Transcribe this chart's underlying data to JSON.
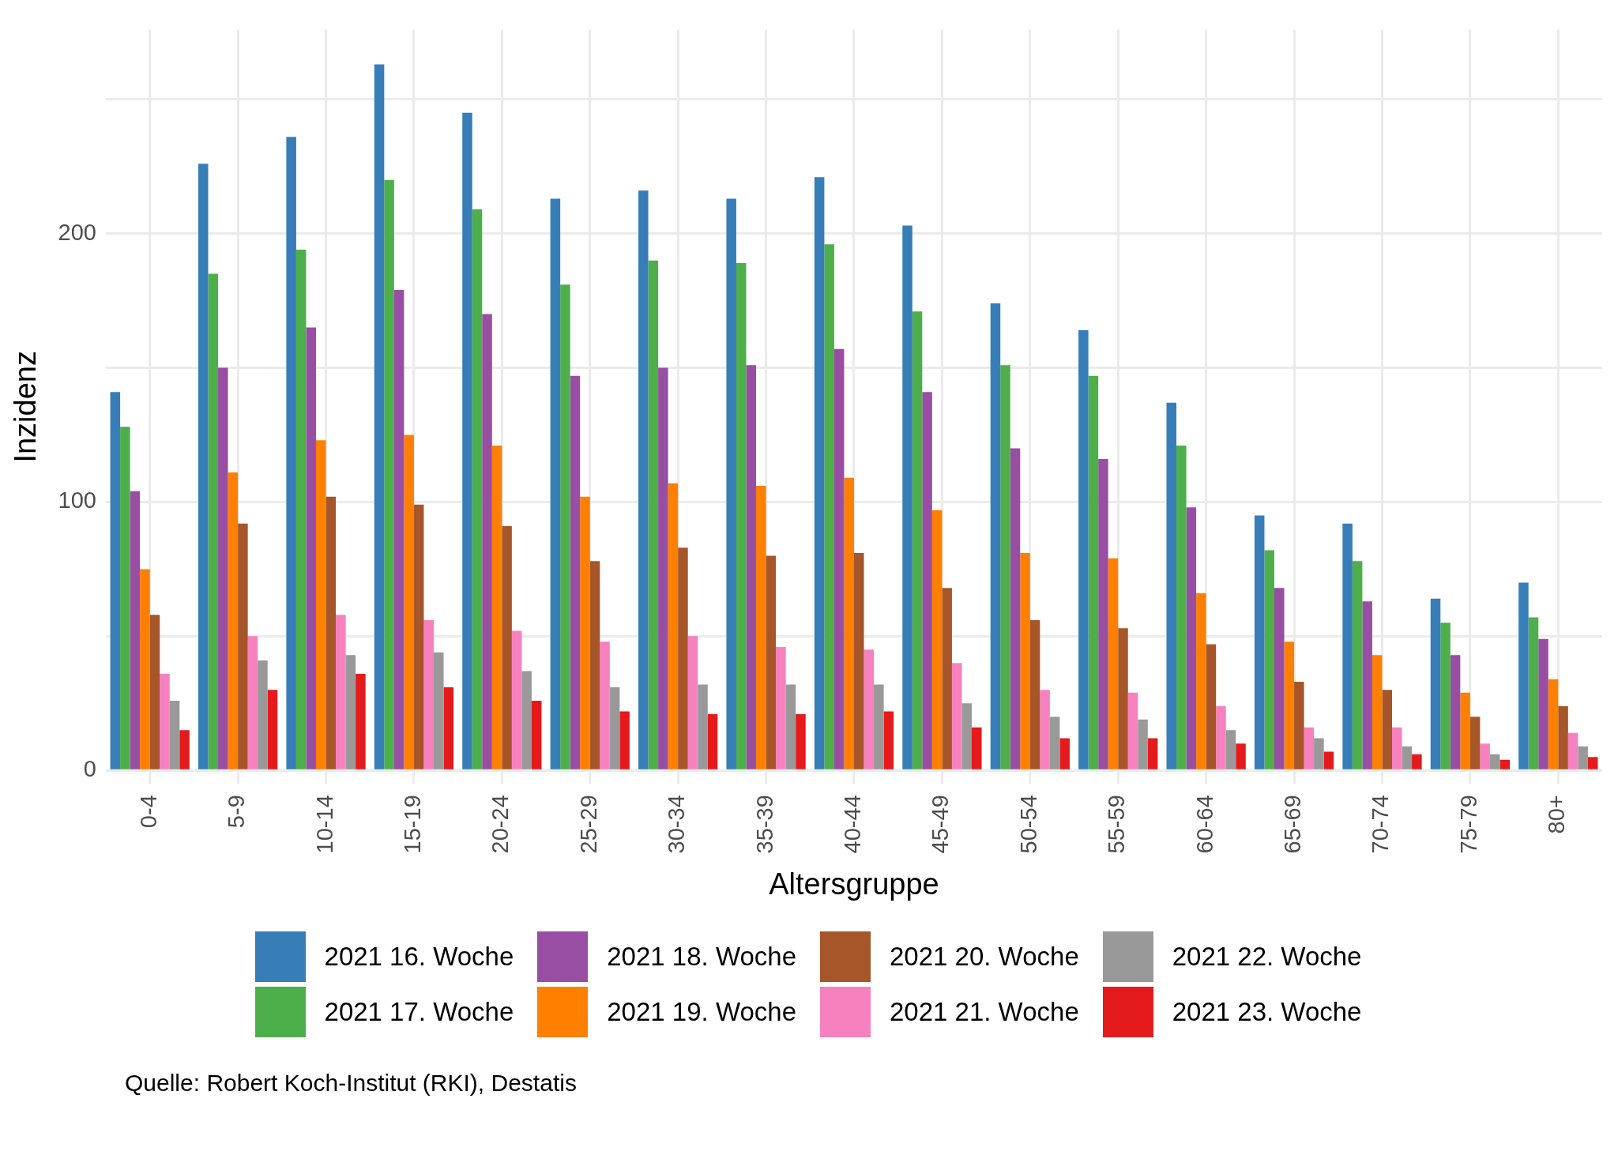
{
  "chart_data": {
    "type": "bar",
    "xlabel": "Altersgruppe",
    "ylabel": "Inzidenz",
    "categories": [
      "0-4",
      "5-9",
      "10-14",
      "15-19",
      "20-24",
      "25-29",
      "30-34",
      "35-39",
      "40-44",
      "45-49",
      "50-54",
      "55-59",
      "60-64",
      "65-69",
      "70-74",
      "75-79",
      "80+"
    ],
    "series": [
      {
        "name": "2021 16. Woche",
        "color": "#377eb8",
        "values": [
          141,
          226,
          236,
          263,
          245,
          213,
          216,
          213,
          221,
          203,
          174,
          164,
          137,
          95,
          92,
          64,
          70
        ]
      },
      {
        "name": "2021 17. Woche",
        "color": "#4daf4a",
        "values": [
          128,
          185,
          194,
          220,
          209,
          181,
          190,
          189,
          196,
          171,
          151,
          147,
          121,
          82,
          78,
          55,
          57
        ]
      },
      {
        "name": "2021 18. Woche",
        "color": "#984ea3",
        "values": [
          104,
          150,
          165,
          179,
          170,
          147,
          150,
          151,
          157,
          141,
          120,
          116,
          98,
          68,
          63,
          43,
          49
        ]
      },
      {
        "name": "2021 19. Woche",
        "color": "#ff7f00",
        "values": [
          75,
          111,
          123,
          125,
          121,
          102,
          107,
          106,
          109,
          97,
          81,
          79,
          66,
          48,
          43,
          29,
          34
        ]
      },
      {
        "name": "2021 20. Woche",
        "color": "#a65628",
        "values": [
          58,
          92,
          102,
          99,
          91,
          78,
          83,
          80,
          81,
          68,
          56,
          53,
          47,
          33,
          30,
          20,
          24
        ]
      },
      {
        "name": "2021 21. Woche",
        "color": "#f781bf",
        "values": [
          36,
          50,
          58,
          56,
          52,
          48,
          50,
          46,
          45,
          40,
          30,
          29,
          24,
          16,
          16,
          10,
          14
        ]
      },
      {
        "name": "2021 22. Woche",
        "color": "#999999",
        "values": [
          26,
          41,
          43,
          44,
          37,
          31,
          32,
          32,
          32,
          25,
          20,
          19,
          15,
          12,
          9,
          6,
          9
        ]
      },
      {
        "name": "2021 23. Woche",
        "color": "#e41a1c",
        "values": [
          15,
          30,
          36,
          31,
          26,
          22,
          21,
          21,
          22,
          16,
          12,
          12,
          10,
          7,
          6,
          4,
          5
        ]
      }
    ],
    "ylim": [
      -5,
      276
    ],
    "yticks": [
      0,
      {
        "value": 50,
        "label": null
      },
      100,
      {
        "value": 150,
        "label": null
      },
      200,
      {
        "value": 250,
        "label": null
      }
    ],
    "grid": true,
    "legend": "bottom",
    "annotations": [
      "Quelle: Robert Koch-Institut (RKI), Destatis"
    ]
  }
}
